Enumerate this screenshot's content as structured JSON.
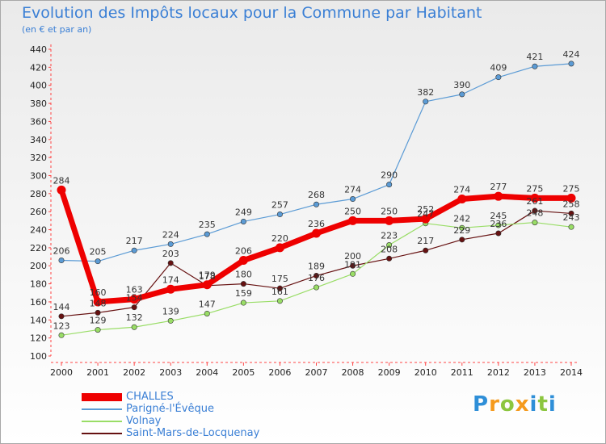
{
  "chart_data": {
    "type": "line",
    "title": "Evolution des Impôts locaux pour la Commune par Habitant",
    "subtitle": "(en € et par an)",
    "categories": [
      "2000",
      "2001",
      "2002",
      "2003",
      "2004",
      "2005",
      "2006",
      "2007",
      "2008",
      "2009",
      "2010",
      "2011",
      "2012",
      "2013",
      "2014"
    ],
    "ylim": [
      100,
      440
    ],
    "yticks": [
      100,
      120,
      140,
      160,
      180,
      200,
      220,
      240,
      260,
      280,
      300,
      320,
      340,
      360,
      380,
      400,
      420,
      440
    ],
    "grid": false,
    "legend_position": "bottom-left",
    "series": [
      {
        "name": "CHALLES",
        "color": "#ee0000",
        "values": [
          284,
          160,
          163,
          174,
          179,
          206,
          220,
          236,
          250,
          250,
          252,
          274,
          277,
          275,
          275
        ]
      },
      {
        "name": "Parigné-l'Évêque",
        "color": "#5b9bd5",
        "values": [
          206,
          205,
          217,
          224,
          235,
          249,
          257,
          268,
          274,
          290,
          382,
          390,
          409,
          421,
          424
        ]
      },
      {
        "name": "Volnay",
        "color": "#99dd66",
        "values": [
          123,
          129,
          132,
          139,
          147,
          159,
          161,
          176,
          191,
          223,
          247,
          242,
          245,
          248,
          243
        ]
      },
      {
        "name": "Saint-Mars-de-Locquenay",
        "color": "#661111",
        "values": [
          144,
          148,
          154,
          203,
          178,
          180,
          175,
          189,
          200,
          208,
          217,
          229,
          236,
          261,
          258
        ]
      }
    ]
  },
  "brand": {
    "letters": [
      "P",
      "r",
      "o",
      "x",
      "i",
      "t",
      "i"
    ],
    "colors": [
      "#2f8fd8",
      "#f59a1c",
      "#8cc63f",
      "#f59a1c",
      "#2f8fd8",
      "#8cc63f",
      "#2f8fd8"
    ]
  }
}
